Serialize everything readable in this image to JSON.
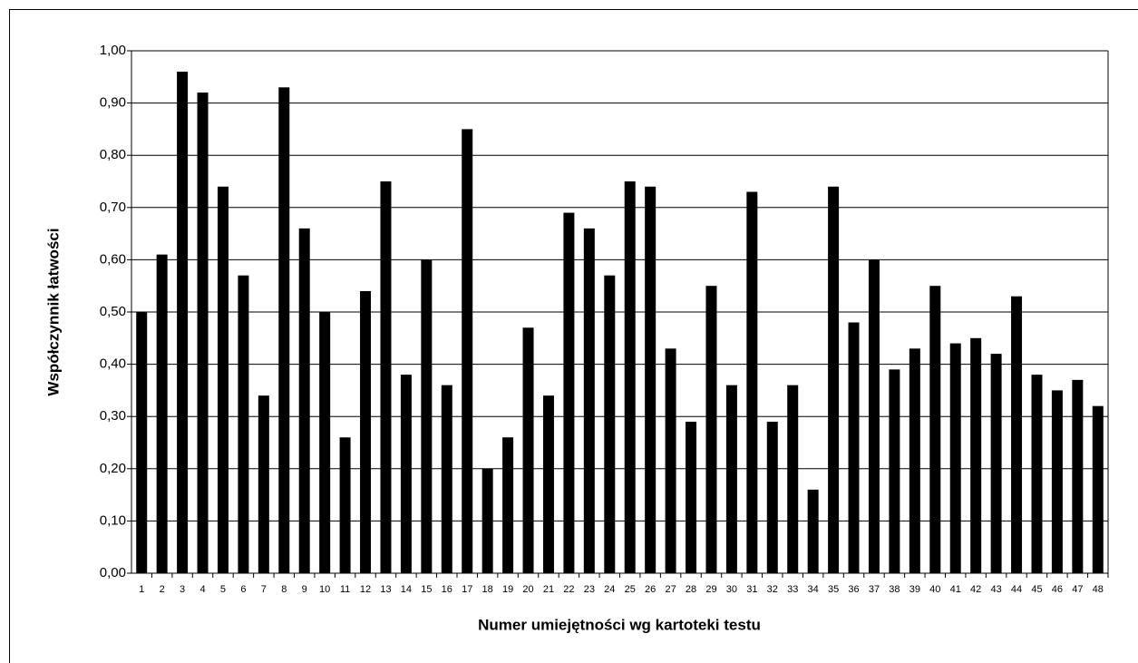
{
  "chart_data": {
    "type": "bar",
    "x_label": "Numer umiejętności wg kartoteki testu",
    "y_label": "Współczynnik łatwości",
    "categories": [
      "1",
      "2",
      "3",
      "4",
      "5",
      "6",
      "7",
      "8",
      "9",
      "10",
      "11",
      "12",
      "13",
      "14",
      "15",
      "16",
      "17",
      "18",
      "19",
      "20",
      "21",
      "22",
      "23",
      "24",
      "25",
      "26",
      "27",
      "28",
      "29",
      "30",
      "31",
      "32",
      "33",
      "34",
      "35",
      "36",
      "37",
      "38",
      "39",
      "40",
      "41",
      "42",
      "43",
      "44",
      "45",
      "46",
      "47",
      "48"
    ],
    "values": [
      0.5,
      0.61,
      0.96,
      0.92,
      0.74,
      0.57,
      0.34,
      0.93,
      0.66,
      0.5,
      0.26,
      0.54,
      0.75,
      0.38,
      0.6,
      0.36,
      0.85,
      0.2,
      0.26,
      0.47,
      0.34,
      0.69,
      0.66,
      0.57,
      0.75,
      0.74,
      0.43,
      0.29,
      0.55,
      0.36,
      0.73,
      0.29,
      0.36,
      0.16,
      0.74,
      0.48,
      0.6,
      0.39,
      0.43,
      0.55,
      0.44,
      0.45,
      0.42,
      0.53,
      0.38,
      0.35,
      0.37,
      0.32
    ],
    "color": "#000000",
    "ylim": [
      0,
      1
    ],
    "yticks": [
      {
        "value": 0,
        "label": "0,00"
      },
      {
        "value": 0.1,
        "label": "0,10"
      },
      {
        "value": 0.2,
        "label": "0,20"
      },
      {
        "value": 0.3,
        "label": "0,30"
      },
      {
        "value": 0.4,
        "label": "0,40"
      },
      {
        "value": 0.5,
        "label": "0,50"
      },
      {
        "value": 0.6,
        "label": "0,60"
      },
      {
        "value": 0.7,
        "label": "0,70"
      },
      {
        "value": 0.8,
        "label": "0,80"
      },
      {
        "value": 0.9,
        "label": "0,90"
      },
      {
        "value": 1,
        "label": "1,00"
      }
    ],
    "grid": true
  }
}
